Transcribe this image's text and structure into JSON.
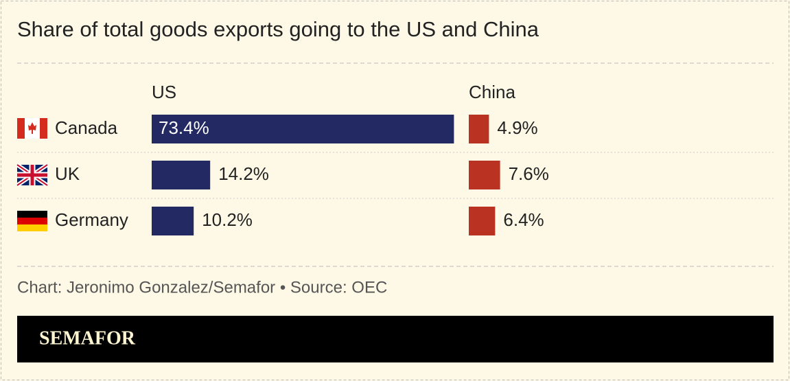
{
  "chart_data": {
    "type": "bar",
    "title": "Share of total goods exports going to the US and China",
    "categories": [
      "Canada",
      "UK",
      "Germany"
    ],
    "series": [
      {
        "name": "US",
        "color": "#232a63",
        "values": [
          73.4,
          14.2,
          10.2
        ],
        "value_labels": [
          "73.4%",
          "14.2%",
          "10.2%"
        ]
      },
      {
        "name": "China",
        "color": "#b93222",
        "values": [
          4.9,
          7.6,
          6.4
        ],
        "value_labels": [
          "4.9%",
          "7.6%",
          "6.4%"
        ]
      }
    ],
    "source": "Chart: Jeronimo Gonzalez/Semafor • Source: OEC"
  },
  "brand": "SEMAFOR"
}
